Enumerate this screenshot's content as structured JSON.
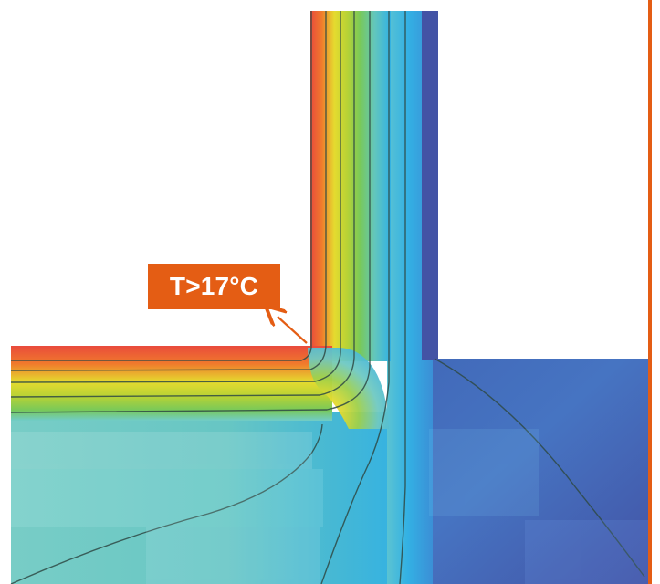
{
  "diagram": {
    "callout_text": "T>17°C"
  },
  "colors": {
    "accent_orange": "#e45d14",
    "white": "#ffffff",
    "red": "#e94b3c",
    "orange": "#f07a2c",
    "yellow": "#e5db2f",
    "yellow_green": "#b7d235",
    "green": "#78c95a",
    "teal": "#63c6bc",
    "light_teal": "#71ccc8",
    "cyan": "#32b1e4",
    "blue_mid": "#4a86d1",
    "blue_dark": "#4353a5"
  },
  "icons": [
    "arrow-up-left-icon"
  ]
}
